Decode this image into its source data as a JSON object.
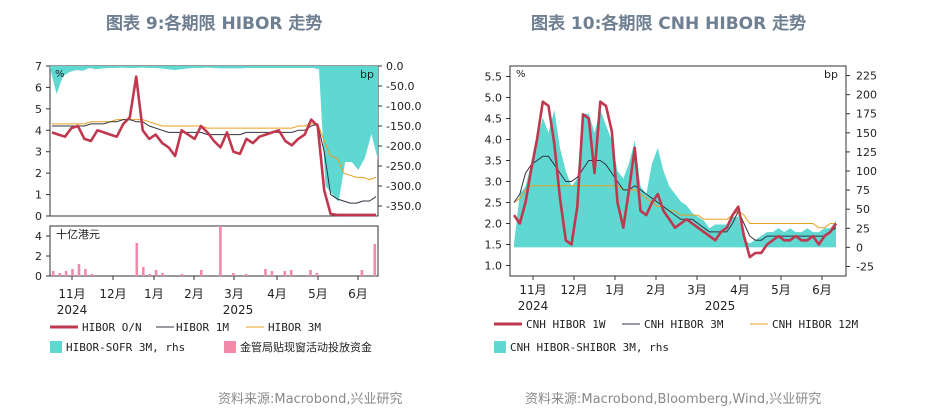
{
  "left": {
    "title": "图表 9:各期限 HIBOR 走势",
    "source": "资料来源:Macrobond,兴业研究",
    "chart_data": {
      "type": "line",
      "x_ticks": [
        "11月",
        "12月",
        "1月",
        "2月",
        "3月",
        "4月",
        "5月",
        "6月"
      ],
      "x_years": [
        "2024",
        "2025"
      ],
      "y_unit_left": "%",
      "y_unit_right": "bp",
      "ylim_left": [
        0,
        7
      ],
      "ylim_right": [
        -375,
        0
      ],
      "y_ticks_left": [
        "0",
        "1",
        "2",
        "3",
        "4",
        "5",
        "6",
        "7"
      ],
      "y_ticks_right": [
        "0.0",
        "-50.0",
        "-100.0",
        "-150.0",
        "-200.0",
        "-250.0",
        "-300.0",
        "-350.0"
      ],
      "sub_ylabel": "十亿港元",
      "sub_ylim": [
        0,
        5
      ],
      "sub_y_ticks": [
        "0",
        "2",
        "4"
      ],
      "legend": [
        "HIBOR O/N",
        "HIBOR 1M",
        "HIBOR 3M",
        "HIBOR-SOFR 3M, rhs",
        "金管局贴现窗活动投放资金"
      ],
      "series": [
        {
          "name": "HIBOR O/N",
          "color": "#c0384f",
          "values": [
            3.9,
            3.8,
            3.7,
            4.1,
            4.2,
            3.6,
            3.5,
            4.0,
            3.9,
            3.8,
            3.7,
            4.3,
            4.6,
            6.5,
            4.0,
            3.6,
            3.8,
            3.4,
            3.2,
            2.8,
            4.0,
            3.8,
            3.6,
            4.2,
            3.9,
            3.5,
            3.2,
            3.9,
            3.0,
            2.9,
            3.6,
            3.4,
            3.7,
            3.8,
            3.9,
            4.0,
            3.5,
            3.3,
            3.6,
            3.8,
            4.5,
            4.2,
            1.2,
            0.1,
            0.05,
            0.05,
            0.05,
            0.05,
            0.05,
            0.05,
            0.05
          ]
        },
        {
          "name": "HIBOR 1M",
          "color": "#333344",
          "values": [
            4.2,
            4.2,
            4.2,
            4.2,
            4.2,
            4.2,
            4.3,
            4.3,
            4.3,
            4.4,
            4.4,
            4.5,
            4.5,
            4.4,
            4.4,
            4.2,
            4.1,
            4.0,
            3.9,
            3.9,
            3.9,
            3.9,
            3.9,
            3.9,
            3.8,
            3.8,
            3.8,
            3.8,
            3.8,
            3.8,
            3.9,
            3.9,
            3.9,
            3.9,
            3.9,
            3.9,
            3.9,
            3.9,
            4.0,
            4.0,
            4.2,
            4.3,
            3.0,
            1.0,
            0.8,
            0.7,
            0.6,
            0.6,
            0.7,
            0.7,
            0.9
          ]
        },
        {
          "name": "HIBOR 3M",
          "color": "#e8a020",
          "values": [
            4.3,
            4.3,
            4.3,
            4.3,
            4.3,
            4.3,
            4.4,
            4.4,
            4.4,
            4.4,
            4.5,
            4.5,
            4.5,
            4.5,
            4.5,
            4.4,
            4.3,
            4.2,
            4.2,
            4.2,
            4.2,
            4.2,
            4.2,
            4.2,
            4.1,
            4.1,
            4.1,
            4.1,
            4.1,
            4.1,
            4.1,
            4.1,
            4.1,
            4.1,
            4.1,
            4.1,
            4.1,
            4.1,
            4.2,
            4.2,
            4.3,
            4.3,
            3.5,
            2.8,
            2.7,
            2.0,
            1.9,
            1.8,
            1.8,
            1.7,
            1.8
          ]
        },
        {
          "name": "HIBOR-SOFR 3M, rhs",
          "color": "#5ed8d0",
          "values": [
            -5,
            -70,
            -25,
            -15,
            -10,
            -12,
            -5,
            -8,
            -6,
            -5,
            -5,
            -4,
            -5,
            -5,
            -4,
            -5,
            -5,
            -6,
            -8,
            -10,
            -8,
            -6,
            -5,
            -5,
            -4,
            -5,
            -6,
            -6,
            -6,
            -6,
            -5,
            -5,
            -5,
            -5,
            -5,
            -5,
            -5,
            -5,
            -5,
            -5,
            -5,
            -8,
            -300,
            -320,
            -340,
            -240,
            -240,
            -260,
            -230,
            -170,
            -235
          ]
        },
        {
          "name": "金管局贴现窗活动投放资金",
          "color": "#f08aa8",
          "type": "bar",
          "values": [
            0.5,
            0.3,
            0.5,
            0.7,
            1.2,
            0.7,
            0.2,
            0,
            0,
            0,
            0,
            0,
            0,
            3.3,
            0.9,
            0.2,
            0.6,
            0.3,
            0,
            0,
            0.2,
            0,
            0,
            0.6,
            0,
            0,
            5.0,
            0,
            0.3,
            0,
            0.2,
            0,
            0,
            0.7,
            0.5,
            0,
            0.5,
            0.6,
            0,
            0,
            0.6,
            0.3,
            0,
            0,
            0,
            0,
            0,
            0,
            0.6,
            0,
            3.2
          ]
        }
      ]
    }
  },
  "right": {
    "title": "图表 10:各期限 CNH HIBOR 走势",
    "source": "资料来源:Macrobond,Bloomberg,Wind,兴业研究",
    "chart_data": {
      "type": "line",
      "x_ticks": [
        "11月",
        "12月",
        "1月",
        "2月",
        "3月",
        "4月",
        "5月",
        "6月"
      ],
      "x_years": [
        "2024",
        "2025"
      ],
      "y_unit_left": "%",
      "y_unit_right": "bp",
      "ylim_left": [
        0.75,
        5.75
      ],
      "ylim_right": [
        -37.5,
        237.5
      ],
      "y_ticks_left": [
        "1.0",
        "1.5",
        "2.0",
        "2.5",
        "3.0",
        "3.5",
        "4.0",
        "4.5",
        "5.0",
        "5.5"
      ],
      "y_ticks_right": [
        "-25",
        "0",
        "25",
        "50",
        "75",
        "100",
        "125",
        "150",
        "175",
        "200",
        "225"
      ],
      "legend": [
        "CNH HIBOR 1W",
        "CNH HIBOR 3M",
        "CNH HIBOR 12M",
        "CNH HIBOR-SHIBOR 3M, rhs"
      ],
      "series": [
        {
          "name": "CNH HIBOR 1W",
          "color": "#c0384f",
          "values": [
            2.2,
            2.0,
            2.5,
            3.3,
            4.0,
            4.9,
            4.8,
            3.9,
            2.6,
            1.6,
            1.5,
            2.4,
            4.6,
            4.5,
            3.2,
            4.9,
            4.8,
            4.2,
            2.5,
            1.9,
            2.8,
            3.8,
            2.3,
            2.2,
            2.5,
            2.7,
            2.3,
            2.1,
            1.9,
            2.0,
            2.1,
            2.0,
            1.9,
            1.8,
            1.7,
            1.6,
            1.8,
            1.9,
            2.2,
            2.4,
            1.7,
            1.2,
            1.3,
            1.3,
            1.5,
            1.6,
            1.7,
            1.6,
            1.6,
            1.7,
            1.6,
            1.6,
            1.7,
            1.5,
            1.7,
            1.8,
            2.0
          ]
        },
        {
          "name": "CNH HIBOR 3M",
          "color": "#333344",
          "values": [
            2.5,
            2.7,
            3.2,
            3.4,
            3.5,
            3.6,
            3.6,
            3.4,
            3.2,
            3.0,
            3.0,
            3.1,
            3.3,
            3.5,
            3.5,
            3.5,
            3.4,
            3.2,
            3.0,
            2.8,
            2.8,
            2.9,
            2.8,
            2.7,
            2.6,
            2.5,
            2.4,
            2.3,
            2.2,
            2.1,
            2.1,
            2.1,
            2.0,
            1.9,
            1.8,
            1.8,
            1.8,
            1.8,
            2.0,
            2.3,
            2.0,
            1.7,
            1.6,
            1.6,
            1.7,
            1.7,
            1.7,
            1.7,
            1.7,
            1.7,
            1.7,
            1.7,
            1.7,
            1.7,
            1.7,
            1.8,
            1.9
          ]
        },
        {
          "name": "CNH HIBOR 12M",
          "color": "#e8a020",
          "values": [
            2.5,
            2.6,
            2.8,
            2.9,
            2.9,
            2.9,
            2.9,
            2.9,
            2.9,
            2.9,
            2.9,
            2.9,
            2.9,
            2.9,
            2.9,
            2.9,
            2.9,
            2.9,
            2.9,
            2.8,
            2.8,
            2.8,
            2.7,
            2.6,
            2.5,
            2.4,
            2.4,
            2.3,
            2.3,
            2.2,
            2.2,
            2.2,
            2.2,
            2.1,
            2.1,
            2.1,
            2.1,
            2.1,
            2.2,
            2.3,
            2.2,
            2.0,
            2.0,
            2.0,
            2.0,
            2.0,
            2.0,
            2.0,
            2.0,
            2.0,
            2.0,
            2.0,
            2.0,
            1.9,
            1.9,
            2.0,
            2.0
          ]
        },
        {
          "name": "CNH HIBOR-SHIBOR 3M, rhs",
          "color": "#5ed8d0",
          "values": [
            5,
            70,
            80,
            110,
            140,
            170,
            150,
            180,
            130,
            100,
            80,
            90,
            175,
            175,
            150,
            180,
            160,
            140,
            100,
            90,
            110,
            140,
            80,
            70,
            110,
            130,
            100,
            80,
            70,
            60,
            55,
            45,
            40,
            35,
            25,
            30,
            30,
            30,
            40,
            40,
            10,
            5,
            10,
            15,
            20,
            20,
            25,
            20,
            25,
            20,
            20,
            25,
            20,
            20,
            25,
            25,
            35
          ]
        }
      ]
    }
  }
}
